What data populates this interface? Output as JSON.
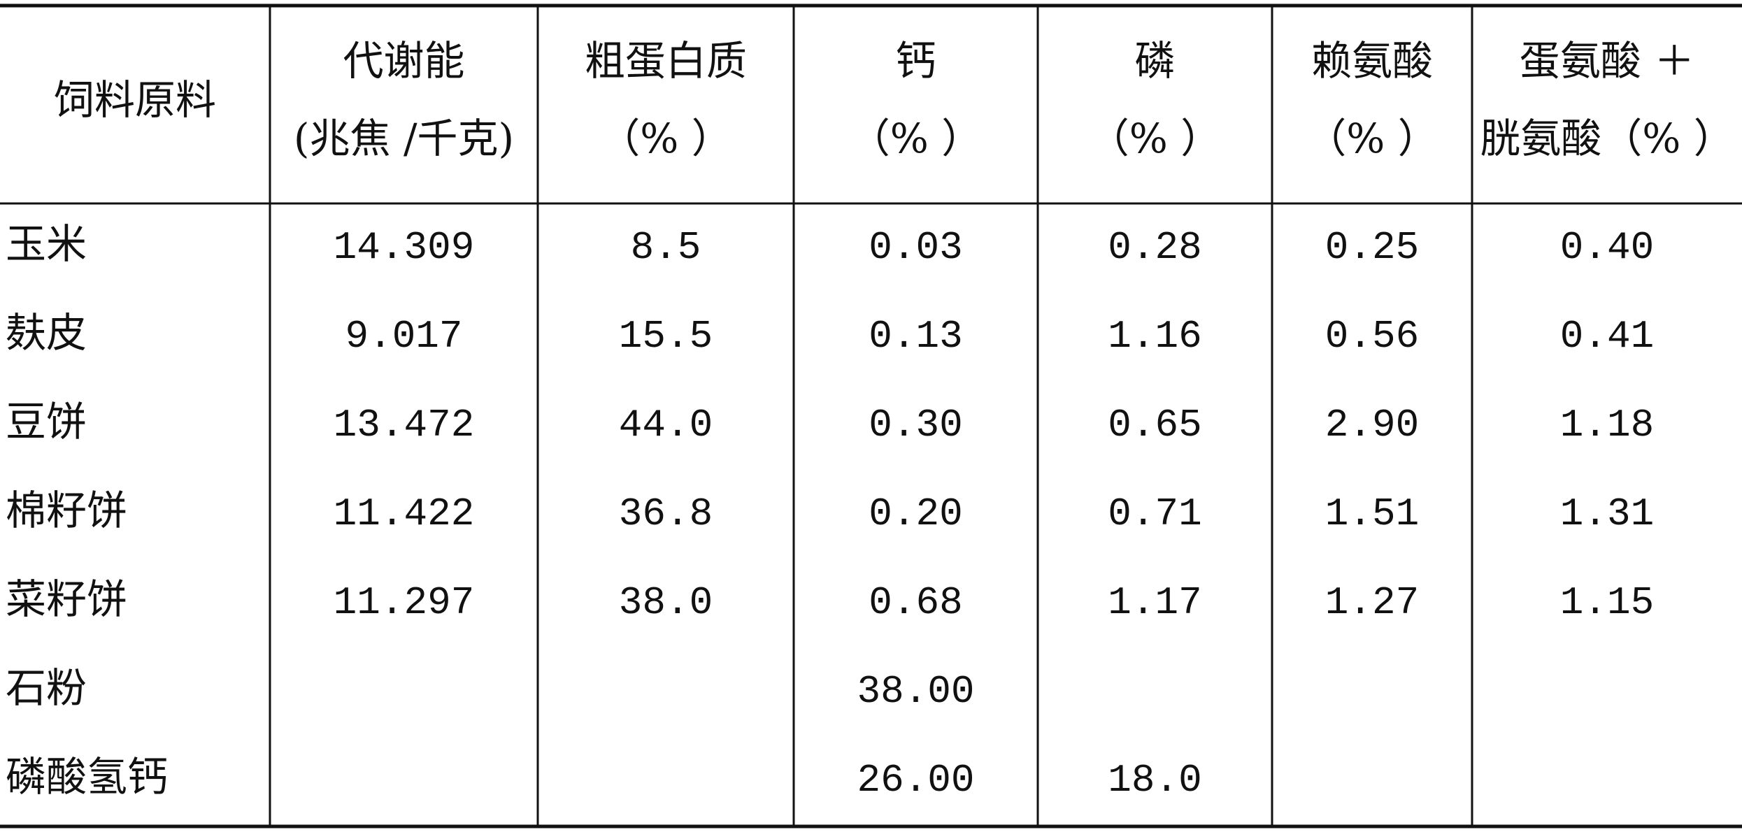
{
  "table": {
    "header": [
      [
        "饲料原料"
      ],
      [
        "代谢能",
        "(兆焦 /千克)"
      ],
      [
        "粗蛋白质",
        "（% ）"
      ],
      [
        "钙",
        "（% ）"
      ],
      [
        "磷",
        "（% ）"
      ],
      [
        "赖氨酸",
        "（% ）"
      ],
      [
        "蛋氨酸 ＋",
        "胱氨酸（% ）"
      ]
    ],
    "rows": [
      [
        "玉米",
        "14.309",
        "8.5",
        "0.03",
        "0.28",
        "0.25",
        "0.40"
      ],
      [
        "麸皮",
        "9.017",
        "15.5",
        "0.13",
        "1.16",
        "0.56",
        "0.41"
      ],
      [
        "豆饼",
        "13.472",
        "44.0",
        "0.30",
        "0.65",
        "2.90",
        "1.18"
      ],
      [
        "棉籽饼",
        "11.422",
        "36.8",
        "0.20",
        "0.71",
        "1.51",
        "1.31"
      ],
      [
        "菜籽饼",
        "11.297",
        "38.0",
        "0.68",
        "1.17",
        "1.27",
        "1.15"
      ],
      [
        "石粉",
        null,
        null,
        "38.00",
        null,
        null,
        null
      ],
      [
        "磷酸氢钙",
        null,
        null,
        "26.00",
        "18.0",
        null,
        null
      ]
    ]
  }
}
